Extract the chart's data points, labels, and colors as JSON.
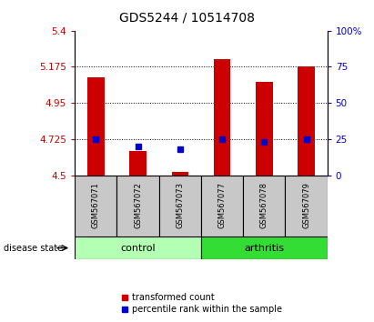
{
  "title": "GDS5244 / 10514708",
  "samples": [
    "GSM567071",
    "GSM567072",
    "GSM567073",
    "GSM567077",
    "GSM567078",
    "GSM567079"
  ],
  "transformed_count": [
    5.11,
    4.65,
    4.52,
    5.22,
    5.08,
    5.175
  ],
  "percentile_rank": [
    25,
    20,
    18,
    25,
    23,
    25
  ],
  "ylim": [
    4.5,
    5.4
  ],
  "yticks": [
    4.5,
    4.725,
    4.95,
    5.175,
    5.4
  ],
  "ytick_labels": [
    "4.5",
    "4.725",
    "4.95",
    "5.175",
    "5.4"
  ],
  "y2ticks": [
    0,
    25,
    50,
    75,
    100
  ],
  "y2tick_labels": [
    "0",
    "25",
    "50",
    "75",
    "100%"
  ],
  "hlines": [
    4.725,
    4.95,
    5.175
  ],
  "bar_color": "#cc0000",
  "dot_color": "#0000cc",
  "bar_width": 0.4,
  "bar_bottom": 4.5,
  "left_tick_color": "#cc0000",
  "right_tick_color": "#0000cc",
  "control_color": "#b3ffb3",
  "arthritis_color": "#33dd33",
  "gray_color": "#c8c8c8",
  "title_fontsize": 10,
  "tick_fontsize": 7.5,
  "sample_fontsize": 6,
  "group_fontsize": 8,
  "legend_fontsize": 7
}
